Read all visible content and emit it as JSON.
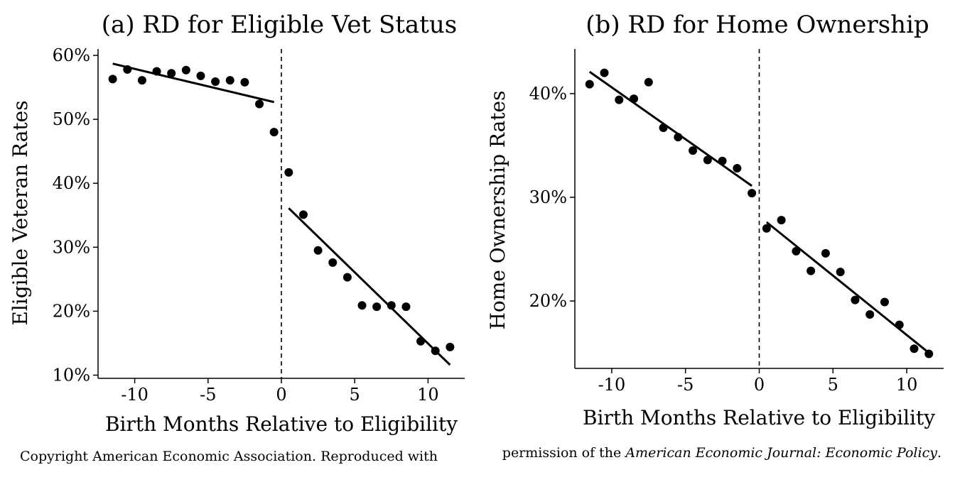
{
  "caption": {
    "left": "Copyright American Economic Association. Reproduced with",
    "right_prefix": "permission of the ",
    "right_italic": "American Economic Journal: Economic Policy",
    "right_suffix": "."
  },
  "chart_data": [
    {
      "type": "scatter",
      "title": "(a) RD for Eligible Vet Status",
      "xlabel": "Birth Months Relative to Eligibility",
      "ylabel": "Eligible Veteran Rates",
      "xlim": [
        -12.5,
        12.5
      ],
      "ylim": [
        9.5,
        61
      ],
      "xticks": [
        -10,
        -5,
        0,
        5,
        10
      ],
      "xtick_labels": [
        "-10",
        "-5",
        "0",
        "5",
        "10"
      ],
      "yticks": [
        10,
        20,
        30,
        40,
        50,
        60
      ],
      "ytick_labels": [
        "10%",
        "20%",
        "30%",
        "40%",
        "50%",
        "60%"
      ],
      "cutoff": 0,
      "series": [
        {
          "x": [
            -11.5,
            -10.5,
            -9.5,
            -8.5,
            -7.5,
            -6.5,
            -5.5,
            -4.5,
            -3.5,
            -2.5,
            -1.5,
            -0.5,
            0.5,
            1.5,
            2.5,
            3.5,
            4.5,
            5.5,
            6.5,
            7.5,
            8.5,
            9.5,
            10.5,
            11.5
          ],
          "y": [
            56.3,
            57.8,
            56.1,
            57.5,
            57.2,
            57.7,
            56.8,
            55.9,
            56.1,
            55.8,
            52.4,
            48.0,
            41.7,
            35.1,
            29.5,
            27.6,
            25.3,
            20.9,
            20.7,
            20.9,
            20.7,
            15.3,
            13.8,
            14.4
          ]
        }
      ],
      "fit_lines": [
        {
          "x": [
            -11.5,
            -0.5
          ],
          "y": [
            58.7,
            52.7
          ]
        },
        {
          "x": [
            0.5,
            11.5
          ],
          "y": [
            36.1,
            11.6
          ]
        }
      ]
    },
    {
      "type": "scatter",
      "title": "(b) RD for Home Ownership",
      "xlabel": "Birth Months Relative to Eligibility",
      "ylabel": "Home Ownership Rates",
      "xlim": [
        -12.5,
        12.5
      ],
      "ylim": [
        13.5,
        44.3
      ],
      "xticks": [
        -10,
        -5,
        0,
        5,
        10
      ],
      "xtick_labels": [
        "-10",
        "-5",
        "0",
        "5",
        "10"
      ],
      "yticks": [
        20,
        30,
        40
      ],
      "ytick_labels": [
        "20%",
        "30%",
        "40%"
      ],
      "cutoff": 0,
      "series": [
        {
          "x": [
            -11.5,
            -10.5,
            -9.5,
            -8.5,
            -7.5,
            -6.5,
            -5.5,
            -4.5,
            -3.5,
            -2.5,
            -1.5,
            -0.5,
            0.5,
            1.5,
            2.5,
            3.5,
            4.5,
            5.5,
            6.5,
            7.5,
            8.5,
            9.5,
            10.5,
            11.5
          ],
          "y": [
            40.9,
            42.0,
            39.4,
            39.5,
            41.1,
            36.7,
            35.8,
            34.5,
            33.6,
            33.5,
            32.8,
            30.4,
            27.0,
            27.8,
            24.8,
            22.9,
            24.6,
            22.8,
            20.1,
            18.7,
            19.9,
            17.7,
            15.4,
            14.9
          ]
        }
      ],
      "fit_lines": [
        {
          "x": [
            -11.5,
            -0.5
          ],
          "y": [
            42.1,
            31.1
          ]
        },
        {
          "x": [
            0.5,
            11.5
          ],
          "y": [
            27.6,
            15.0
          ]
        }
      ]
    }
  ]
}
